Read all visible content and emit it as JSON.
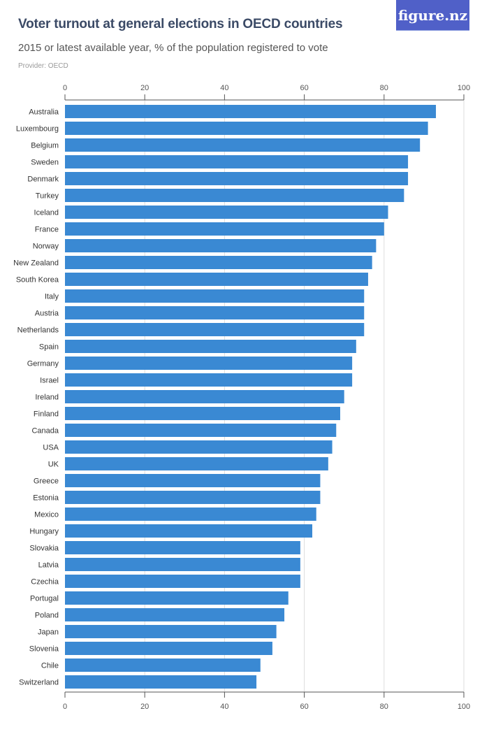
{
  "header": {
    "title": "Voter turnout at general elections in OECD countries",
    "subtitle": "2015 or latest available year, % of the population registered to vote",
    "provider": "Provider: OECD",
    "logo": "figure.nz"
  },
  "colors": {
    "bar": "#3a89d3",
    "axis": "#555555",
    "grid": "#dddddd"
  },
  "chart_data": {
    "type": "bar",
    "orientation": "horizontal",
    "title": "Voter turnout at general elections in OECD countries",
    "xlabel": "",
    "ylabel": "",
    "xlim": [
      0,
      100
    ],
    "ticks": [
      0,
      20,
      40,
      60,
      80,
      100
    ],
    "grid": true,
    "categories": [
      "Australia",
      "Luxembourg",
      "Belgium",
      "Sweden",
      "Denmark",
      "Turkey",
      "Iceland",
      "France",
      "Norway",
      "New Zealand",
      "South Korea",
      "Italy",
      "Austria",
      "Netherlands",
      "Spain",
      "Germany",
      "Israel",
      "Ireland",
      "Finland",
      "Canada",
      "USA",
      "UK",
      "Greece",
      "Estonia",
      "Mexico",
      "Hungary",
      "Slovakia",
      "Latvia",
      "Czechia",
      "Portugal",
      "Poland",
      "Japan",
      "Slovenia",
      "Chile",
      "Switzerland"
    ],
    "values": [
      93,
      91,
      89,
      86,
      86,
      85,
      81,
      80,
      78,
      77,
      76,
      75,
      75,
      75,
      73,
      72,
      72,
      70,
      69,
      68,
      67,
      66,
      64,
      64,
      63,
      62,
      59,
      59,
      59,
      56,
      55,
      53,
      52,
      49,
      48
    ]
  }
}
